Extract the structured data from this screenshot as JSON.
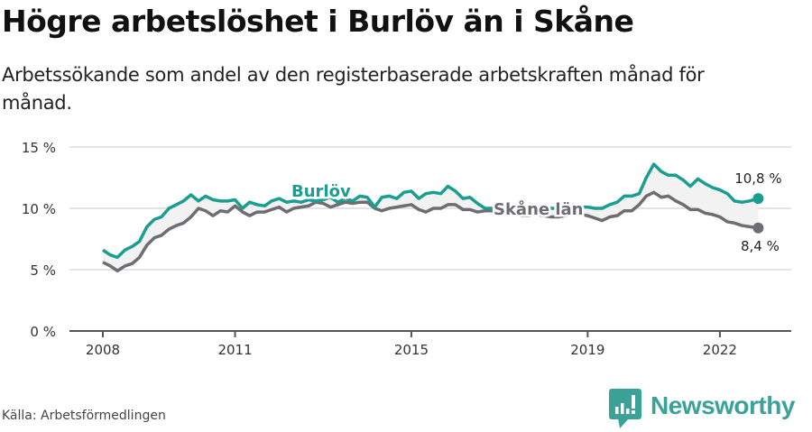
{
  "header": {
    "title": "Högre arbetslöshet i Burlöv än i Skåne",
    "subtitle": "Arbetssökande som andel av den registerbaserade arbetskraften månad för månad."
  },
  "footer": {
    "source": "Källa: Arbetsförmedlingen",
    "brand": "Newsworthy",
    "brand_icon": "bar-chart-speech-bubble-icon"
  },
  "colors": {
    "burlov": "#1a9e8f",
    "skane": "#6e6d72",
    "gridline": "#e3e3e3",
    "axis": "#555555",
    "band_fill": "#f2f2f2",
    "brand": "#3aa297"
  },
  "chart_data": {
    "type": "line",
    "title": "Högre arbetslöshet i Burlöv än i Skåne",
    "subtitle": "Arbetssökande som andel av den registerbaserade arbetskraften månad för månad.",
    "xlabel": "",
    "ylabel": "",
    "ylim": [
      0,
      15
    ],
    "xlim": [
      2007.2,
      2023.6
    ],
    "y_ticks": [
      0,
      5,
      10,
      15
    ],
    "y_tick_labels": [
      "0 %",
      "5 %",
      "10 %",
      "15 %"
    ],
    "x_ticks": [
      2008,
      2011,
      2015,
      2019,
      2022
    ],
    "x_tick_labels": [
      "2008",
      "2011",
      "2015",
      "2019",
      "2022"
    ],
    "grid": true,
    "legend": "inline labels",
    "x": [
      2008.0,
      2008.17,
      2008.33,
      2008.5,
      2008.67,
      2008.83,
      2009.0,
      2009.17,
      2009.33,
      2009.5,
      2009.67,
      2009.83,
      2010.0,
      2010.17,
      2010.33,
      2010.5,
      2010.67,
      2010.83,
      2011.0,
      2011.17,
      2011.33,
      2011.5,
      2011.67,
      2011.83,
      2012.0,
      2012.17,
      2012.33,
      2012.5,
      2012.67,
      2012.83,
      2013.0,
      2013.17,
      2013.33,
      2013.5,
      2013.67,
      2013.83,
      2014.0,
      2014.17,
      2014.33,
      2014.5,
      2014.67,
      2014.83,
      2015.0,
      2015.17,
      2015.33,
      2015.5,
      2015.67,
      2015.83,
      2016.0,
      2016.17,
      2016.33,
      2016.5,
      2016.67,
      2016.83,
      2017.0,
      2017.17,
      2017.33,
      2017.5,
      2017.67,
      2017.83,
      2018.0,
      2018.17,
      2018.33,
      2018.5,
      2018.67,
      2018.83,
      2019.0,
      2019.17,
      2019.33,
      2019.5,
      2019.67,
      2019.83,
      2020.0,
      2020.17,
      2020.33,
      2020.5,
      2020.67,
      2020.83,
      2021.0,
      2021.17,
      2021.33,
      2021.5,
      2021.67,
      2021.83,
      2022.0,
      2022.17,
      2022.33,
      2022.5,
      2022.67,
      2022.87
    ],
    "series": [
      {
        "name": "Burlöv",
        "label": "Burlöv",
        "end_label": "10,8 %",
        "values": [
          6.6,
          6.2,
          6.0,
          6.6,
          6.9,
          7.3,
          8.5,
          9.1,
          9.3,
          10.0,
          10.3,
          10.6,
          11.1,
          10.6,
          11.0,
          10.7,
          10.6,
          10.6,
          10.7,
          10.0,
          10.5,
          10.3,
          10.2,
          10.6,
          10.8,
          10.5,
          10.6,
          10.5,
          10.7,
          10.6,
          10.7,
          10.9,
          10.5,
          10.8,
          10.6,
          11.0,
          10.9,
          10.1,
          10.9,
          11.0,
          10.8,
          11.3,
          11.4,
          10.8,
          11.2,
          11.3,
          11.2,
          11.8,
          11.4,
          10.8,
          10.9,
          10.4,
          10.0,
          10.0,
          10.0,
          10.1,
          10.1,
          10.0,
          10.0,
          10.1,
          10.1,
          10.0,
          10.0,
          10.2,
          10.3,
          10.1,
          10.1,
          10.0,
          10.0,
          10.3,
          10.5,
          11.0,
          11.0,
          11.2,
          12.5,
          13.6,
          13.0,
          12.7,
          12.7,
          12.3,
          11.8,
          12.4,
          12.0,
          11.7,
          11.5,
          11.2,
          10.6,
          10.5,
          10.6,
          10.8
        ]
      },
      {
        "name": "Skåne län",
        "label": "Skåne län",
        "end_label": "8,4 %",
        "values": [
          5.6,
          5.3,
          4.9,
          5.3,
          5.5,
          6.0,
          7.0,
          7.6,
          7.8,
          8.3,
          8.6,
          8.8,
          9.3,
          10.0,
          9.8,
          9.4,
          9.8,
          9.7,
          10.2,
          9.7,
          9.4,
          9.7,
          9.7,
          9.9,
          10.1,
          9.7,
          10.0,
          10.1,
          10.2,
          10.5,
          10.4,
          10.1,
          10.3,
          10.5,
          10.4,
          10.5,
          10.5,
          10.0,
          9.8,
          10.0,
          10.1,
          10.2,
          10.3,
          9.9,
          9.7,
          10.0,
          10.0,
          10.3,
          10.3,
          9.9,
          9.9,
          9.7,
          9.8,
          9.8,
          9.7,
          9.7,
          9.6,
          9.4,
          9.4,
          9.5,
          9.4,
          9.3,
          9.3,
          9.4,
          9.5,
          9.5,
          9.4,
          9.2,
          9.0,
          9.3,
          9.4,
          9.8,
          9.8,
          10.3,
          11.0,
          11.3,
          10.9,
          11.0,
          10.6,
          10.3,
          9.9,
          9.9,
          9.6,
          9.5,
          9.3,
          8.9,
          8.8,
          8.6,
          8.5,
          8.4
        ]
      }
    ]
  }
}
